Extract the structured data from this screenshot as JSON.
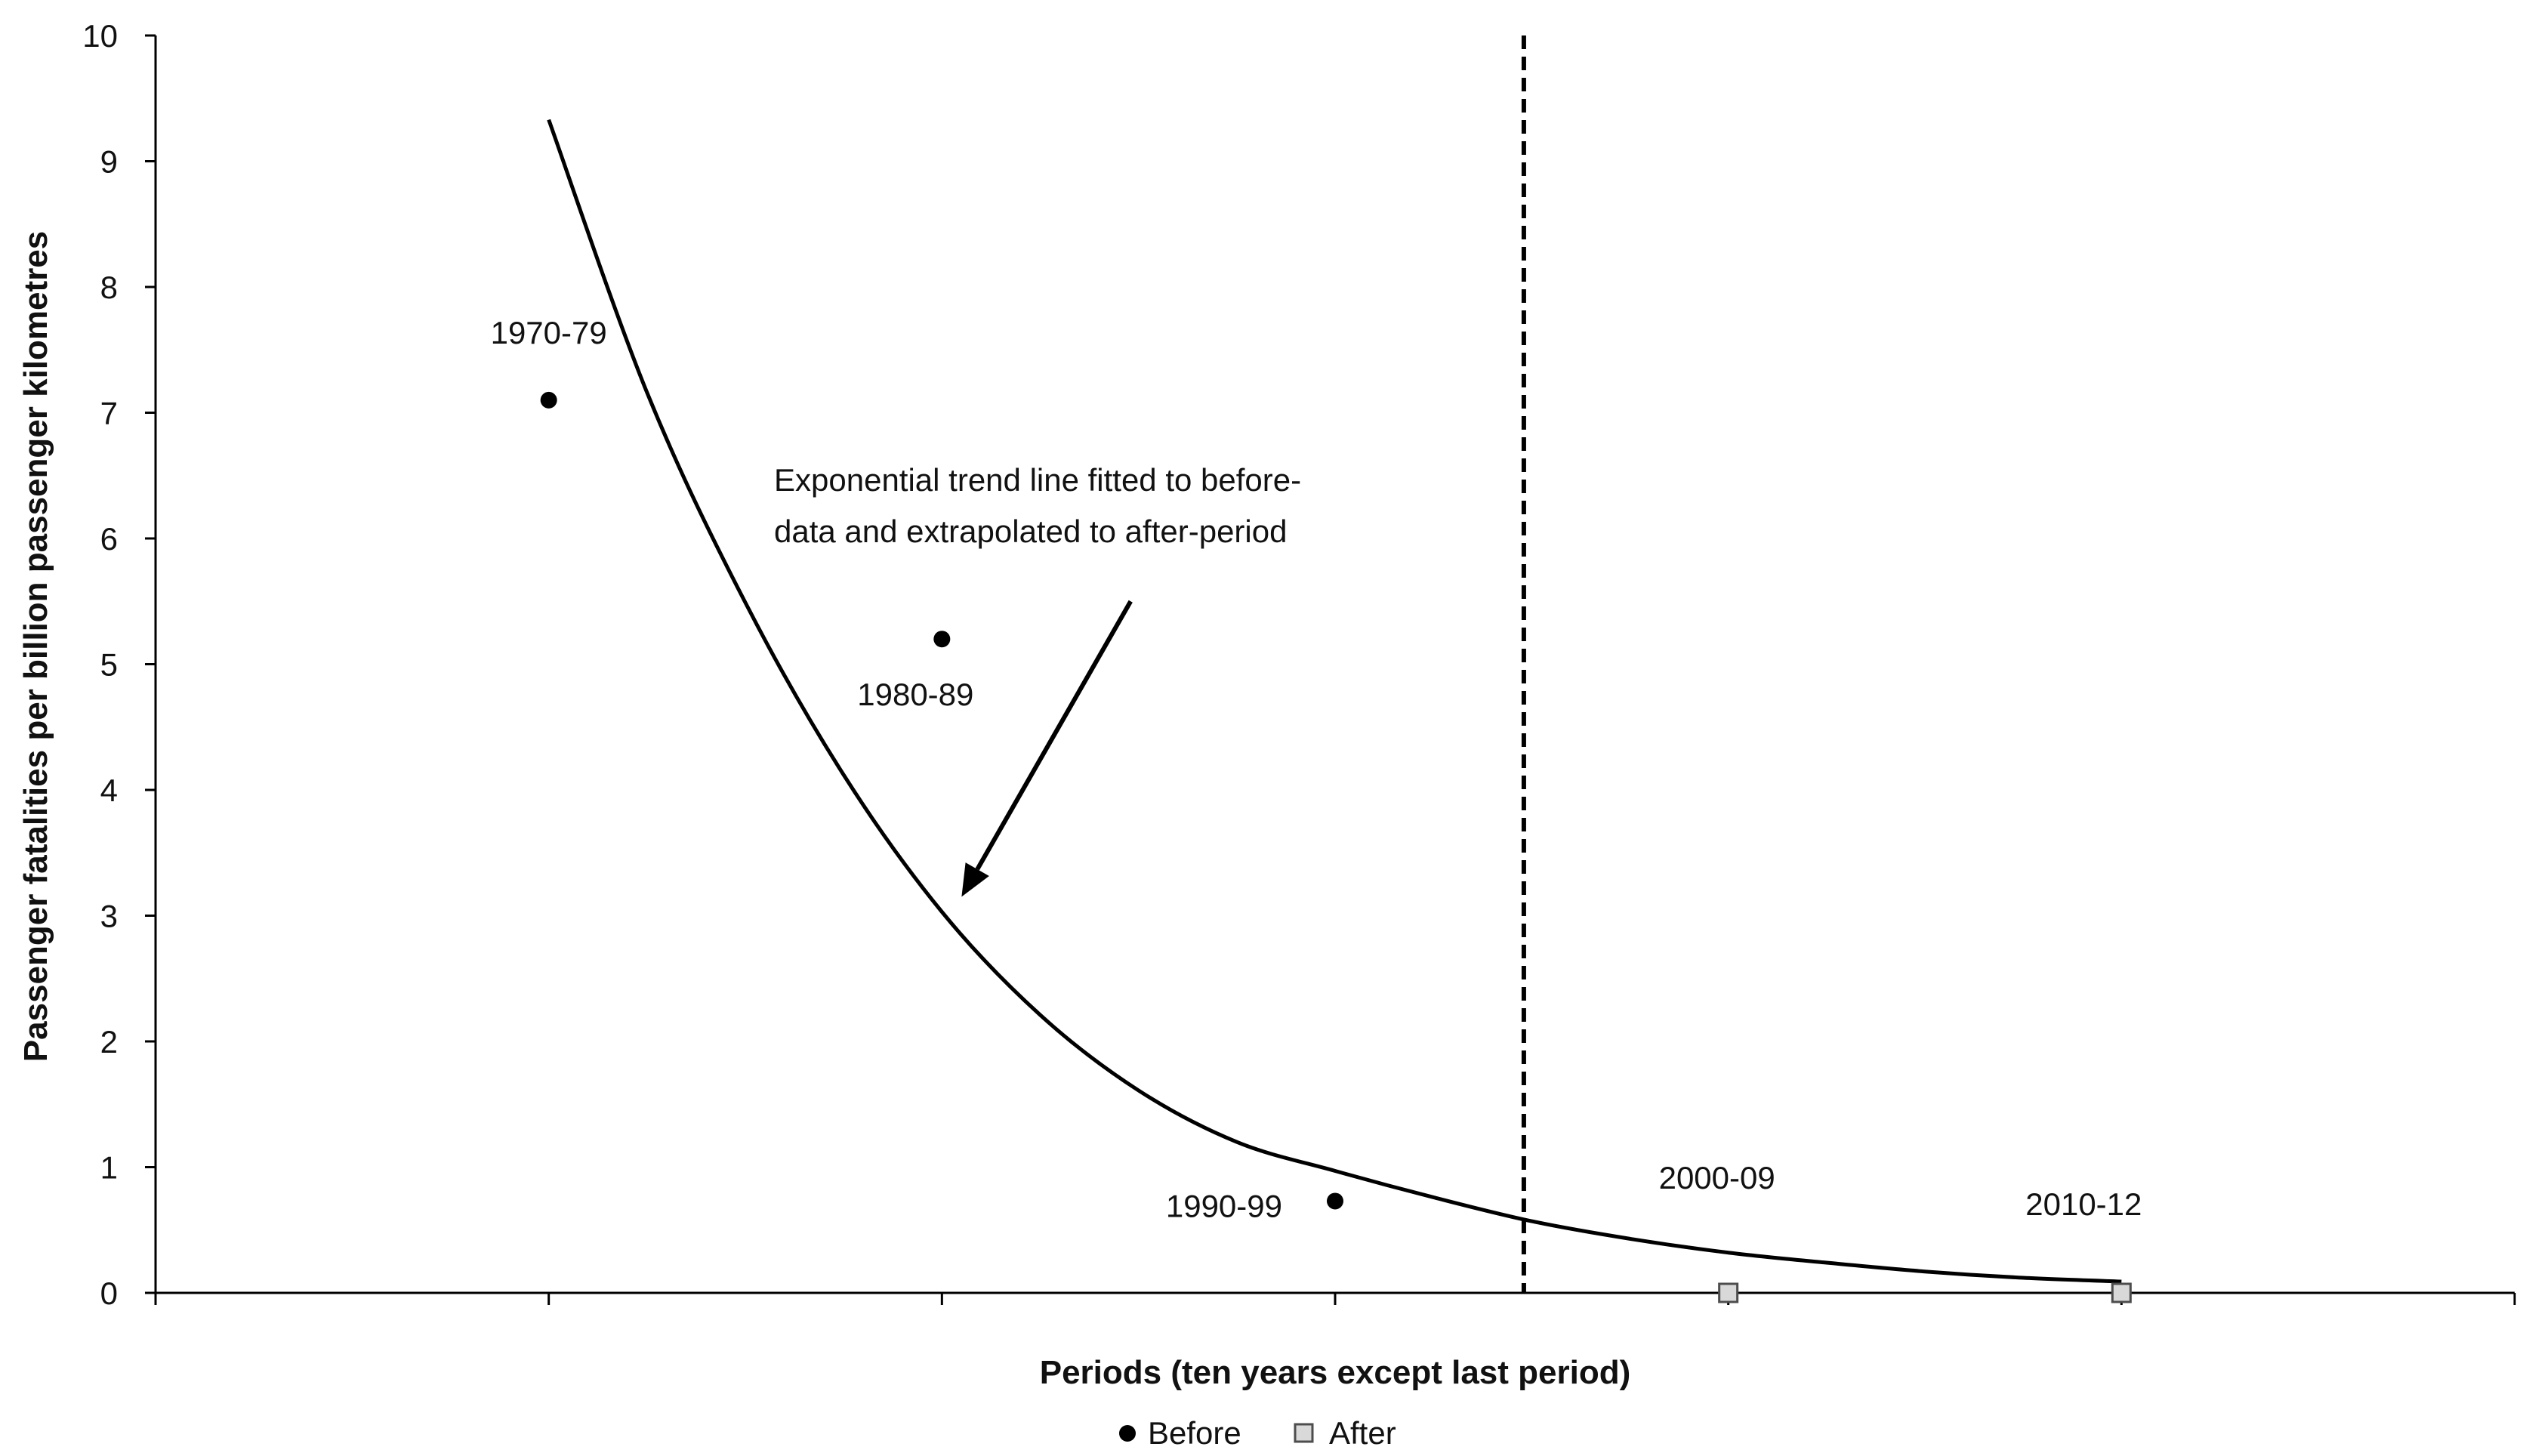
{
  "chart_data": {
    "type": "scatter",
    "title": "",
    "xlabel": "Periods (ten years except last period)",
    "ylabel": "Passenger fatalities per billion passenger kilometres",
    "xlim": [
      0,
      6
    ],
    "ylim": [
      0,
      10
    ],
    "y_ticks": [
      0,
      1,
      2,
      3,
      4,
      5,
      6,
      7,
      8,
      9,
      10
    ],
    "x_ticks": [
      1,
      2,
      3,
      4,
      5
    ],
    "grid": false,
    "legend_position": "bottom-center",
    "series": [
      {
        "name": "Before",
        "marker": "circle",
        "color": "#000000",
        "points": [
          {
            "x": 1,
            "y": 7.1,
            "label": "1970-79"
          },
          {
            "x": 2,
            "y": 5.2,
            "label": "1980-89"
          },
          {
            "x": 3,
            "y": 0.73,
            "label": "1990-99"
          }
        ]
      },
      {
        "name": "After",
        "marker": "square",
        "color": "#d9d9d9",
        "points": [
          {
            "x": 4,
            "y": 0,
            "label": "2000-09"
          },
          {
            "x": 5,
            "y": 0,
            "label": "2010-12"
          }
        ]
      }
    ],
    "trend_line": {
      "type": "exponential",
      "x": [
        1,
        1.25,
        1.5,
        1.75,
        2,
        2.25,
        2.5,
        2.75,
        3,
        3.25,
        3.5,
        3.75,
        4,
        4.25,
        4.5,
        4.75,
        5
      ],
      "y": [
        9.33,
        7.16,
        5.49,
        4.12,
        3.03,
        2.21,
        1.61,
        1.2,
        0.97,
        0.76,
        0.57,
        0.43,
        0.32,
        0.24,
        0.17,
        0.12,
        0.09
      ]
    },
    "divider_x": 3.48,
    "annotation": {
      "lines": [
        "Exponential trend line fitted to before-",
        "data and extrapolated to after-period"
      ],
      "arrow_from": {
        "x": 2.48,
        "y": 5.5
      },
      "arrow_to": {
        "x": 2.05,
        "y": 3.15
      }
    }
  },
  "legend": {
    "before_label": "Before",
    "after_label": "After"
  },
  "colors": {
    "axis": "#000000",
    "before_marker": "#000000",
    "after_marker_fill": "#d9d9d9",
    "after_marker_stroke": "#4d4d4d"
  }
}
